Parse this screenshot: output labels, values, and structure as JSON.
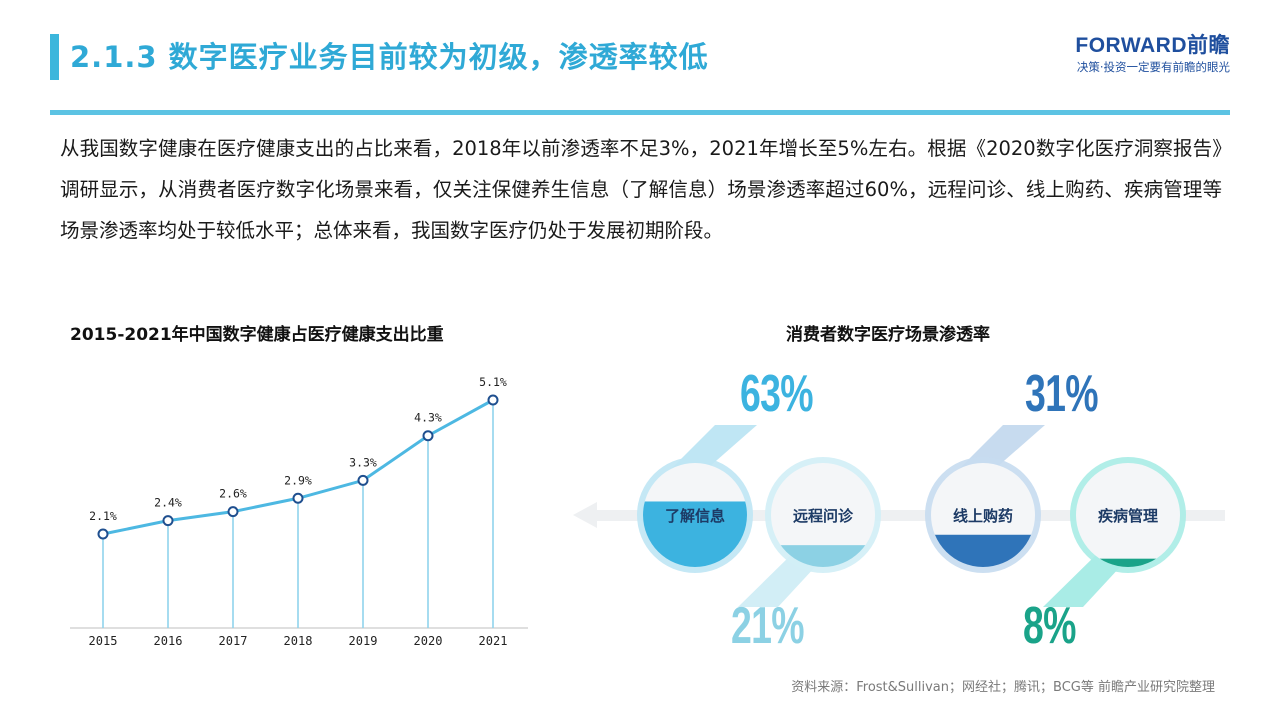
{
  "header": {
    "title": "2.1.3 数字医疗业务目前较为初级，渗透率较低",
    "brand_name": "FORWARD前瞻",
    "brand_slogan": "决策·投资一定要有前瞻的眼光"
  },
  "body": {
    "paragraph": "从我国数字健康在医疗健康支出的占比来看，2018年以前渗透率不足3%，2021年增长至5%左右。根据《2020数字化医疗洞察报告》调研显示，从消费者医疗数字化场景来看，仅关注保健养生信息（了解信息）场景渗透率超过60%，远程问诊、线上购药、疾病管理等场景渗透率均处于较低水平；总体来看，我国数字医疗仍处于发展初期阶段。"
  },
  "left_chart": {
    "title": "2015-2021年中国数字健康占医疗健康支出比重"
  },
  "right_chart": {
    "title": "消费者数字医疗场景渗透率"
  },
  "chart_data": [
    {
      "type": "line",
      "title": "2015-2021年中国数字健康占医疗健康支出比重",
      "categories": [
        "2015",
        "2016",
        "2017",
        "2018",
        "2019",
        "2020",
        "2021"
      ],
      "values": [
        2.1,
        2.4,
        2.6,
        2.9,
        3.3,
        4.3,
        5.1
      ],
      "data_labels": [
        "2.1%",
        "2.4%",
        "2.6%",
        "2.9%",
        "3.3%",
        "4.3%",
        "5.1%"
      ],
      "ylim": [
        0,
        6
      ],
      "grid": false,
      "color": "#4db8e2"
    },
    {
      "type": "bar",
      "title": "消费者数字医疗场景渗透率",
      "categories": [
        "了解信息",
        "远程问诊",
        "线上购药",
        "疾病管理"
      ],
      "values": [
        63,
        21,
        31,
        8
      ],
      "data_labels": [
        "63%",
        "21%",
        "31%",
        "8%"
      ],
      "colors": [
        "#3cb3e0",
        "#8cd1e4",
        "#2f74b9",
        "#1aa389"
      ]
    }
  ],
  "footer": {
    "source": "资料来源：Frost&Sullivan；网经社；腾讯；BCG等 前瞻产业研究院整理"
  }
}
